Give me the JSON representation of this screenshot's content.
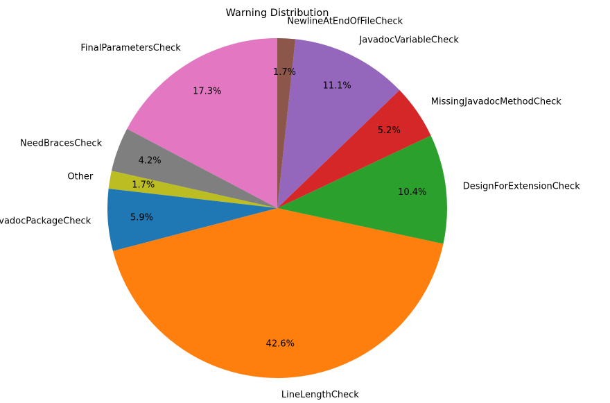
{
  "chart_data": {
    "type": "pie",
    "title": "Warning Distribution",
    "start_angle_deg": 90,
    "direction": "counterclockwise",
    "slices": [
      {
        "label": "FinalParametersCheck",
        "value": 17.3,
        "pct_label": "17.3%",
        "color": "#e377c2"
      },
      {
        "label": "NeedBracesCheck",
        "value": 4.2,
        "pct_label": "4.2%",
        "color": "#7f7f7f"
      },
      {
        "label": "Other",
        "value": 1.7,
        "pct_label": "1.7%",
        "color": "#bcbd22"
      },
      {
        "label": "JavadocPackageCheck",
        "value": 5.9,
        "pct_label": "5.9%",
        "color": "#1f77b4"
      },
      {
        "label": "LineLengthCheck",
        "value": 42.6,
        "pct_label": "42.6%",
        "color": "#ff7f0e"
      },
      {
        "label": "DesignForExtensionCheck",
        "value": 10.4,
        "pct_label": "10.4%",
        "color": "#2ca02c"
      },
      {
        "label": "MissingJavadocMethodCheck",
        "value": 5.2,
        "pct_label": "5.2%",
        "color": "#d62728"
      },
      {
        "label": "JavadocVariableCheck",
        "value": 11.1,
        "pct_label": "11.1%",
        "color": "#9467bd"
      },
      {
        "label": "NewlineAtEndOfFileCheck",
        "value": 1.7,
        "pct_label": "1.7%",
        "color": "#8c564b"
      }
    ]
  }
}
